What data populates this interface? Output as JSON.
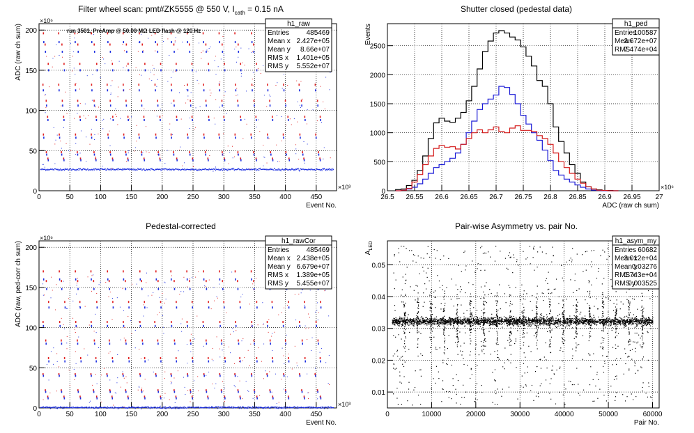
{
  "chart_data": [
    {
      "id": "p1",
      "type": "scatter",
      "title": "Filter wheel scan: pmt#ZK5555 @   550 V, I",
      "title_sub": "cath",
      "title_tail": " = 0.15 nA",
      "annotation": "run 3501, PreAmp @ 50.00 MΩ LED flash @  120 Hz",
      "xlabel": "Event No.",
      "ylabel": "ADC (raw ch sum)",
      "x_exp": "×10³",
      "y_exp": "×10⁶",
      "xlim": [
        0,
        483
      ],
      "ylim": [
        0,
        208
      ],
      "xticks": [
        0,
        50,
        100,
        150,
        200,
        250,
        300,
        350,
        400,
        450
      ],
      "yticks": [
        0,
        50,
        100,
        150,
        200
      ],
      "grid": true,
      "stats_box": {
        "name": "h1_raw",
        "rows": [
          [
            "Entries",
            "485469"
          ],
          [
            "Mean x",
            "2.427e+05"
          ],
          [
            "Mean y",
            "8.66e+07"
          ],
          [
            "RMS x",
            "1.401e+05"
          ],
          [
            "RMS y",
            "5.552e+07"
          ]
        ]
      },
      "baseline": 27,
      "levels_red": [
        196,
        182,
        158,
        132,
        112,
        92,
        70,
        48,
        40
      ],
      "levels_blue": [
        185,
        173,
        150,
        125,
        106,
        88,
        66,
        45,
        38
      ],
      "colors": {
        "red": "#e02020",
        "blue": "#1c2ee0"
      }
    },
    {
      "id": "p2",
      "type": "line",
      "title": "Shutter closed (pedestal data)",
      "xlabel": "ADC (raw ch sum)",
      "ylabel": "Events",
      "x_exp": "×10⁶",
      "xlim": [
        26.5,
        27.0
      ],
      "ylim": [
        0,
        2880
      ],
      "xticks": [
        26.5,
        26.55,
        26.6,
        26.65,
        26.7,
        26.75,
        26.8,
        26.85,
        26.9,
        26.95,
        27
      ],
      "xtick_labels": [
        "26.5",
        "26.55",
        "26.6",
        "26.65",
        "26.7",
        "26.75",
        "26.8",
        "26.85",
        "26.9",
        "26.95",
        "27"
      ],
      "yticks": [
        0,
        500,
        1000,
        1500,
        2000,
        2500
      ],
      "grid": true,
      "stats_box": {
        "name": "h1_ped",
        "rows": [
          [
            "Entries",
            "100587"
          ],
          [
            "Mean",
            "2.672e+07"
          ],
          [
            "RMS",
            "7.474e+04"
          ]
        ]
      },
      "x": [
        26.52,
        26.53,
        26.54,
        26.55,
        26.56,
        26.57,
        26.58,
        26.59,
        26.6,
        26.61,
        26.62,
        26.63,
        26.64,
        26.65,
        26.66,
        26.67,
        26.68,
        26.69,
        26.7,
        26.71,
        26.72,
        26.73,
        26.74,
        26.75,
        26.76,
        26.77,
        26.78,
        26.79,
        26.8,
        26.81,
        26.82,
        26.83,
        26.84,
        26.85,
        26.86,
        26.87,
        26.88,
        26.89,
        26.9,
        26.91,
        26.92
      ],
      "series": [
        {
          "color": "#000000",
          "values": [
            20,
            30,
            90,
            180,
            350,
            600,
            900,
            1170,
            1250,
            1200,
            1180,
            1250,
            1350,
            1550,
            1800,
            2100,
            2400,
            2580,
            2720,
            2760,
            2720,
            2650,
            2600,
            2480,
            2320,
            2150,
            1900,
            1800,
            1500,
            1100,
            850,
            650,
            450,
            300,
            150,
            70,
            30,
            15,
            5,
            5,
            0
          ]
        },
        {
          "color": "#1a1ad6",
          "values": [
            0,
            10,
            30,
            60,
            120,
            200,
            300,
            400,
            450,
            500,
            560,
            650,
            800,
            1000,
            1200,
            1400,
            1500,
            1580,
            1650,
            1800,
            1780,
            1660,
            1500,
            1300,
            1150,
            1000,
            870,
            700,
            520,
            350,
            270,
            200,
            150,
            100,
            60,
            30,
            10,
            5,
            0,
            0,
            0
          ]
        },
        {
          "color": "#d41a1a",
          "values": [
            0,
            10,
            40,
            150,
            280,
            450,
            600,
            730,
            780,
            750,
            760,
            720,
            800,
            900,
            1000,
            1050,
            1000,
            1050,
            1100,
            1020,
            1000,
            1080,
            1120,
            1040,
            1040,
            1020,
            950,
            900,
            800,
            650,
            500,
            400,
            300,
            200,
            130,
            70,
            30,
            10,
            5,
            0,
            0
          ]
        }
      ]
    },
    {
      "id": "p3",
      "type": "scatter",
      "title": "Pedestal-corrected",
      "xlabel": "Event No.",
      "ylabel": "ADC (raw, ped-corr ch sum)",
      "x_exp": "×10³",
      "y_exp": "×10⁶",
      "xlim": [
        0,
        483
      ],
      "ylim": [
        0,
        208
      ],
      "xticks": [
        0,
        50,
        100,
        150,
        200,
        250,
        300,
        350,
        400,
        450
      ],
      "yticks": [
        0,
        50,
        100,
        150,
        200
      ],
      "grid": true,
      "stats_box": {
        "name": "h1_rawCor",
        "rows": [
          [
            "Entries",
            "485469"
          ],
          [
            "Mean x",
            "2.438e+05"
          ],
          [
            "Mean y",
            "6.679e+07"
          ],
          [
            "RMS x",
            "1.389e+05"
          ],
          [
            "RMS y",
            "5.455e+07"
          ]
        ]
      },
      "baseline": 1,
      "levels_red": [
        170,
        158,
        132,
        107,
        84,
        62,
        42,
        22,
        14
      ],
      "levels_blue": [
        160,
        148,
        125,
        102,
        80,
        58,
        40,
        20,
        12
      ],
      "colors": {
        "red": "#e02020",
        "blue": "#1c2ee0"
      }
    },
    {
      "id": "p4",
      "type": "scatter",
      "title": "Pair-wise Asymmetry vs. pair No.",
      "xlabel": "Pair No.",
      "ylabel": "A",
      "ylabel_sub": "LED",
      "xlim": [
        0,
        61500
      ],
      "ylim": [
        0.005,
        0.0575
      ],
      "xticks": [
        0,
        10000,
        20000,
        30000,
        40000,
        50000,
        60000
      ],
      "yticks": [
        0.01,
        0.02,
        0.03,
        0.04,
        0.05
      ],
      "grid": true,
      "stats_box": {
        "name": "h1_asym_my",
        "rows": [
          [
            "Entries",
            "60682"
          ],
          [
            "Mean x",
            "3.012e+04"
          ],
          [
            "Mean y",
            "0.03276"
          ],
          [
            "RMS x",
            "1.743e+04"
          ],
          [
            "RMS y",
            "0.003525"
          ]
        ]
      },
      "band_center": 0.0323,
      "spike_count": 19
    }
  ]
}
